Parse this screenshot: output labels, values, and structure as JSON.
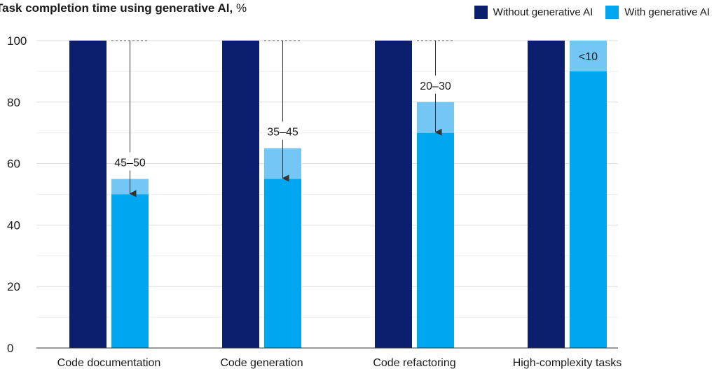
{
  "chart_data": {
    "type": "bar",
    "title": "Task completion time using generative AI,",
    "title_unit": "%",
    "categories": [
      "Code documentation",
      "Code generation",
      "Code refactoring",
      "High-complexity tasks"
    ],
    "series": [
      {
        "name": "Without generative AI",
        "color": "#0b1f6e",
        "values": [
          100,
          100,
          100,
          100
        ]
      },
      {
        "name": "With generative AI",
        "color": "#00a6ef",
        "values": [
          50,
          55,
          70,
          90
        ]
      }
    ],
    "range_extension_color": "#74c7f5",
    "range_upper": [
      55,
      65,
      80,
      100
    ],
    "annotations": [
      "45–50",
      "35–45",
      "20–30",
      "<10"
    ],
    "ylim": [
      0,
      100
    ],
    "yticks": [
      0,
      20,
      40,
      60,
      80,
      100
    ],
    "grid": true,
    "legend_position": "top-right"
  }
}
